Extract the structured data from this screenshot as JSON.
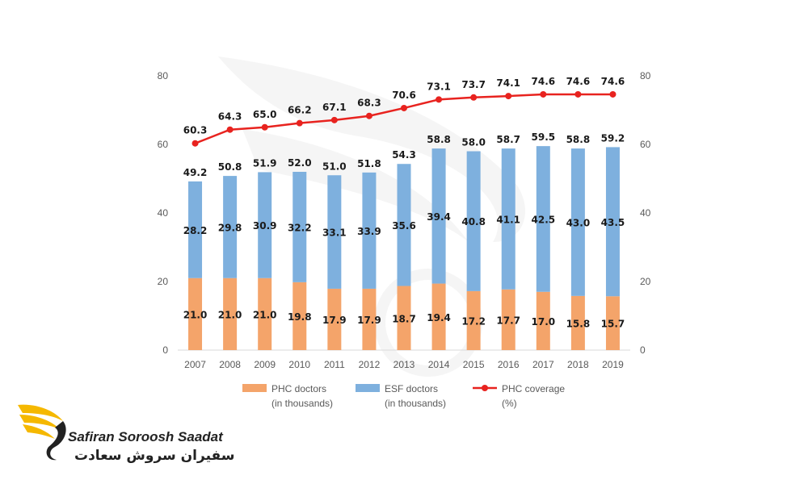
{
  "chart_data": {
    "type": "bar",
    "stacked": true,
    "categories": [
      "2007",
      "2008",
      "2009",
      "2010",
      "2011",
      "2012",
      "2013",
      "2014",
      "2015",
      "2016",
      "2017",
      "2018",
      "2019"
    ],
    "series": [
      {
        "name": "PHC doctors\n(in thousands)",
        "kind": "bar",
        "color": "#f4a46a",
        "values": [
          21.0,
          21.0,
          21.0,
          19.8,
          17.9,
          17.9,
          18.7,
          19.4,
          17.2,
          17.7,
          17.0,
          15.8,
          15.7
        ]
      },
      {
        "name": "ESF doctors\n(in thousands)",
        "kind": "bar",
        "color": "#7eb0de",
        "values": [
          28.2,
          29.8,
          30.9,
          32.2,
          33.1,
          33.9,
          35.6,
          39.4,
          40.8,
          41.1,
          42.5,
          43.0,
          43.5
        ]
      },
      {
        "name": "PHC coverage\n(%)",
        "kind": "line",
        "color": "#e8231f",
        "values": [
          60.3,
          64.3,
          65.0,
          66.2,
          67.1,
          68.3,
          70.6,
          73.1,
          73.7,
          74.1,
          74.6,
          74.6,
          74.6
        ]
      }
    ],
    "totals": [
      49.2,
      50.8,
      51.9,
      52.0,
      51.0,
      51.8,
      54.3,
      58.8,
      58.0,
      58.7,
      59.5,
      58.8,
      59.2
    ],
    "y_ticks": [
      0,
      20,
      40,
      60,
      80
    ],
    "y2_ticks": [
      0,
      20,
      40,
      60,
      80
    ],
    "ylim": [
      0,
      80
    ],
    "grid": false,
    "legend_position": "bottom"
  },
  "logo": {
    "name_en": "Safiran Soroosh Saadat",
    "name_fa": "سفیران سروش سعادت",
    "accent_color": "#f5b800"
  }
}
